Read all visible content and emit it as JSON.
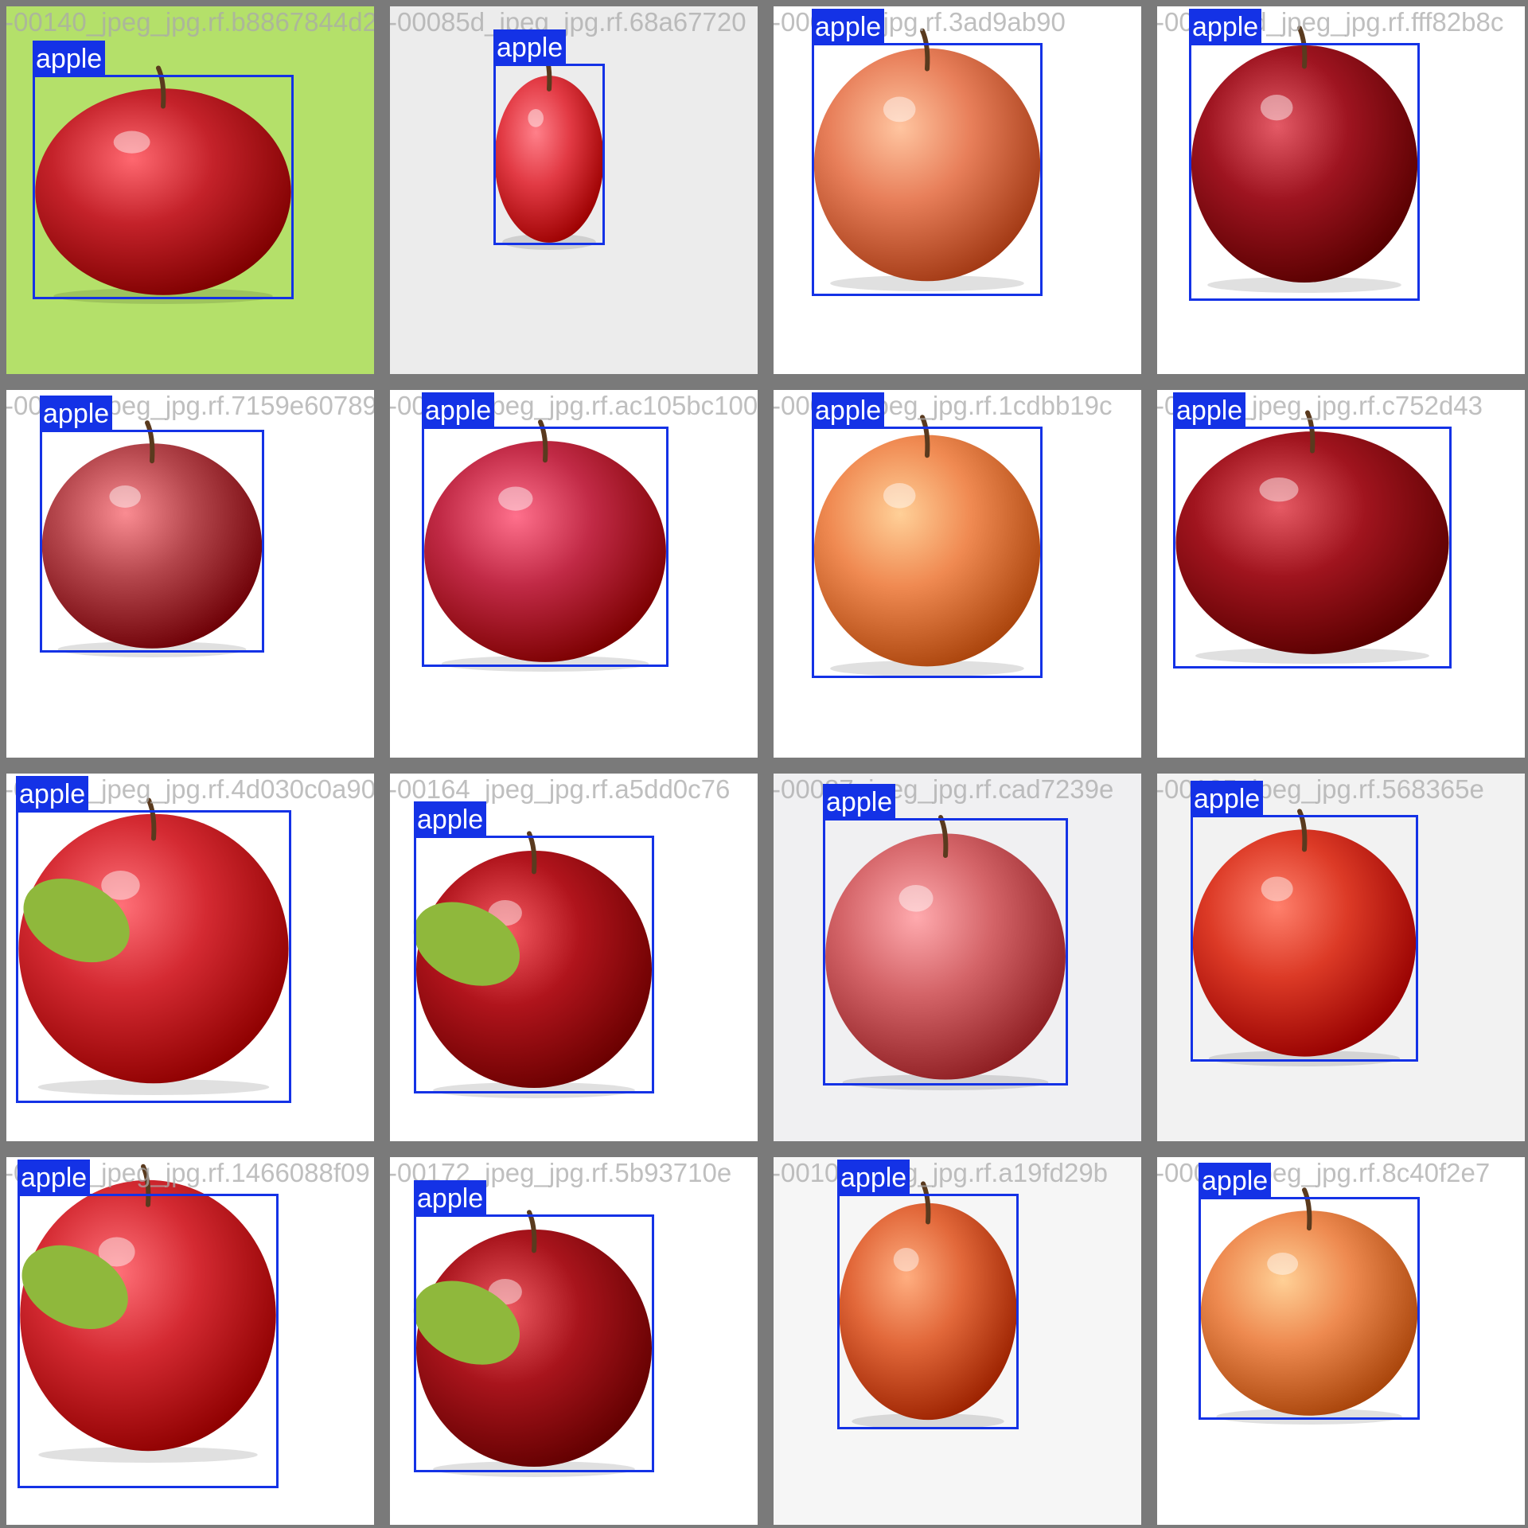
{
  "grid": {
    "background": "#7a7a7a",
    "box_color": "#1432e6",
    "label_text_color": "#ffffff",
    "tiles": [
      {
        "filename": "-00140_jpeg_jpg.rf.b8867844d2",
        "label": "apple",
        "apple": "#c4222a",
        "bg": "#b4e06a",
        "leaf": false
      },
      {
        "filename": "-00085d_jpeg_jpg.rf.68a67720",
        "label": "apple",
        "apple": "#e23a44",
        "bg": "#ececec",
        "leaf": false
      },
      {
        "filename": "-00058e_jpg.rf.3ad9ab90",
        "label": "apple",
        "apple": "#e87f5a",
        "bg": "#ffffff",
        "leaf": false
      },
      {
        "filename": "-00033ed_jpeg_jpg.rf.fff82b8c",
        "label": "apple",
        "apple": "#9e1420",
        "bg": "#ffffff",
        "leaf": false
      },
      {
        "filename": "-00103_jpeg_jpg.rf.7159e60789",
        "label": "apple",
        "apple": "#b4464c",
        "bg": "#ffffff",
        "leaf": false
      },
      {
        "filename": "-00128_jpeg_jpg.rf.ac105bc100",
        "label": "apple",
        "apple": "#c12a46",
        "bg": "#ffffff",
        "leaf": false
      },
      {
        "filename": "-00068_jpeg_jpg.rf.1cdbb19c",
        "label": "apple",
        "apple": "#f08a52",
        "bg": "#ffffff",
        "leaf": false
      },
      {
        "filename": "-00137_jpeg_jpg.rf.c752d43",
        "label": "apple",
        "apple": "#a0141e",
        "bg": "#ffffff",
        "leaf": false
      },
      {
        "filename": "-00134_jpeg_jpg.rf.4d030c0a90",
        "label": "apple",
        "apple": "#d42a32",
        "bg": "#ffffff",
        "leaf": true
      },
      {
        "filename": "-00164_jpeg_jpg.rf.a5dd0c76",
        "label": "apple",
        "apple": "#b0141c",
        "bg": "#ffffff",
        "leaf": true
      },
      {
        "filename": "-00087_jpeg_jpg.rf.cad7239e",
        "label": "apple",
        "apple": "#d46468",
        "bg": "#f0f0f2",
        "leaf": false
      },
      {
        "filename": "-00125_jpeg_jpg.rf.568365e",
        "label": "apple",
        "apple": "#dc3a26",
        "bg": "#f2f2f2",
        "leaf": false
      },
      {
        "filename": "-00134_jpeg_jpg.rf.1466088f09",
        "label": "apple",
        "apple": "#d42a32",
        "bg": "#ffffff",
        "leaf": true
      },
      {
        "filename": "-00172_jpeg_jpg.rf.5b93710e",
        "label": "apple",
        "apple": "#a8141c",
        "bg": "#ffffff",
        "leaf": true
      },
      {
        "filename": "-00104_jpeg_jpg.rf.a19fd29b",
        "label": "apple",
        "apple": "#e2683a",
        "bg": "#f6f6f6",
        "leaf": false
      },
      {
        "filename": "-00093_jpeg_jpg.rf.8c40f2e7",
        "label": "apple",
        "apple": "#ee8a50",
        "bg": "#ffffff",
        "leaf": false
      }
    ]
  }
}
